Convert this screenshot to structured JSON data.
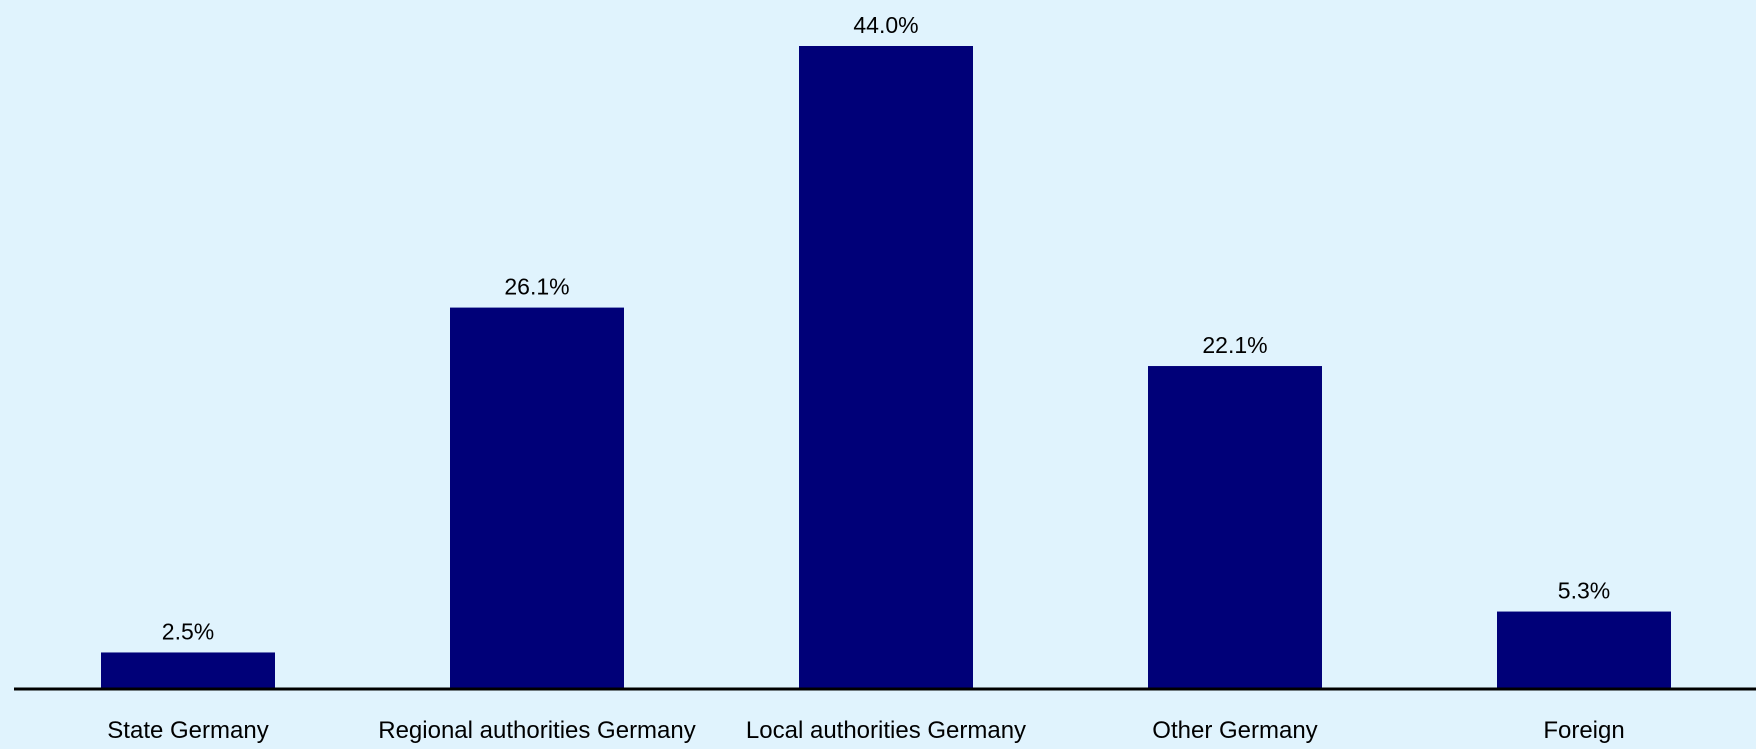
{
  "chart_data": {
    "type": "bar",
    "categories": [
      "State Germany",
      "Regional authorities Germany",
      "Local authorities Germany",
      "Other Germany",
      "Foreign"
    ],
    "values": [
      2.5,
      26.1,
      44.0,
      22.1,
      5.3
    ],
    "data_labels": [
      "2.5%",
      "26.1%",
      "44.0%",
      "22.1%",
      "5.3%"
    ],
    "title": "",
    "xlabel": "",
    "ylabel": "",
    "ylim": [
      0,
      44.0
    ],
    "grid": false,
    "legend": "none",
    "colors": {
      "background": "#e0f3fd",
      "bar": "#000078",
      "axis": "#000000",
      "text": "#000000"
    }
  }
}
